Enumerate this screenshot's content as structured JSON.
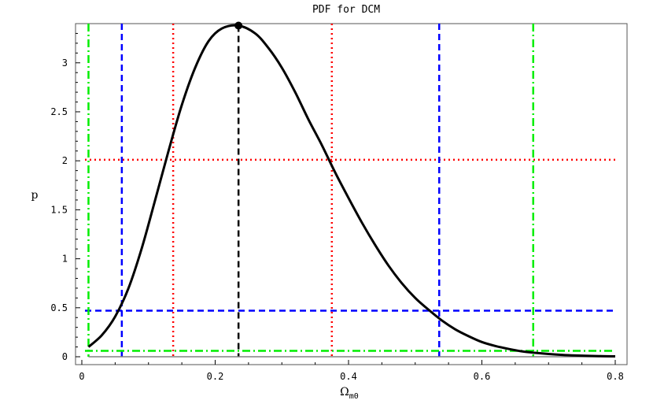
{
  "chart_data": {
    "type": "line",
    "title": "PDF for DCM",
    "xlabel": "Ω",
    "xlabel_subscript": "m0",
    "ylabel": "p",
    "xlim": [
      0,
      0.8
    ],
    "ylim": [
      0,
      3.4
    ],
    "xticks": [
      0,
      0.2,
      0.4,
      0.6,
      0.8
    ],
    "xtick_labels": [
      "0",
      "0.2",
      "0.4",
      "0.6",
      "0.8"
    ],
    "yticks": [
      0,
      0.5,
      1,
      1.5,
      2,
      2.5,
      3
    ],
    "ytick_labels": [
      "0",
      "0.5",
      "1",
      "1.5",
      "2",
      "2.5",
      "3"
    ],
    "grid": false,
    "legend": "none",
    "series": [
      {
        "style": "solid",
        "color": "#000000",
        "x": [
          0.01,
          0.03,
          0.05,
          0.07,
          0.09,
          0.11,
          0.13,
          0.15,
          0.17,
          0.19,
          0.21,
          0.235,
          0.26,
          0.28,
          0.3,
          0.32,
          0.34,
          0.36,
          0.38,
          0.4,
          0.42,
          0.44,
          0.46,
          0.48,
          0.5,
          0.52,
          0.54,
          0.56,
          0.58,
          0.6,
          0.62,
          0.64,
          0.66,
          0.68,
          0.7,
          0.72,
          0.74,
          0.76,
          0.78,
          0.8
        ],
        "y": [
          0.1,
          0.22,
          0.41,
          0.7,
          1.11,
          1.6,
          2.1,
          2.57,
          2.95,
          3.22,
          3.35,
          3.38,
          3.3,
          3.15,
          2.95,
          2.7,
          2.42,
          2.16,
          1.88,
          1.62,
          1.37,
          1.14,
          0.93,
          0.75,
          0.6,
          0.48,
          0.37,
          0.28,
          0.21,
          0.15,
          0.11,
          0.08,
          0.055,
          0.04,
          0.028,
          0.019,
          0.013,
          0.009,
          0.006,
          0.004
        ]
      }
    ],
    "peak": {
      "x": 0.235,
      "y": 3.38
    },
    "baseline": {
      "y": 0,
      "color": "#808080"
    },
    "reference_lines": [
      {
        "orientation": "vertical",
        "value": 0.235,
        "ymax": 3.38,
        "color": "#000000",
        "style": "dashed"
      },
      {
        "orientation": "vertical",
        "value": 0.137,
        "color": "#ff0000",
        "style": "dotted"
      },
      {
        "orientation": "vertical",
        "value": 0.375,
        "color": "#ff0000",
        "style": "dotted"
      },
      {
        "orientation": "horizontal",
        "value": 2.01,
        "color": "#ff0000",
        "style": "dotted"
      },
      {
        "orientation": "vertical",
        "value": 0.06,
        "color": "#0000ff",
        "style": "dashed"
      },
      {
        "orientation": "vertical",
        "value": 0.536,
        "color": "#0000ff",
        "style": "dashed"
      },
      {
        "orientation": "horizontal",
        "value": 0.47,
        "color": "#0000ff",
        "style": "dashed"
      },
      {
        "orientation": "vertical",
        "value": 0.01,
        "color": "#00ee00",
        "style": "dashdot"
      },
      {
        "orientation": "vertical",
        "value": 0.677,
        "color": "#00ee00",
        "style": "dashdot"
      },
      {
        "orientation": "horizontal",
        "value": 0.06,
        "color": "#00ee00",
        "style": "dashdot"
      }
    ]
  }
}
